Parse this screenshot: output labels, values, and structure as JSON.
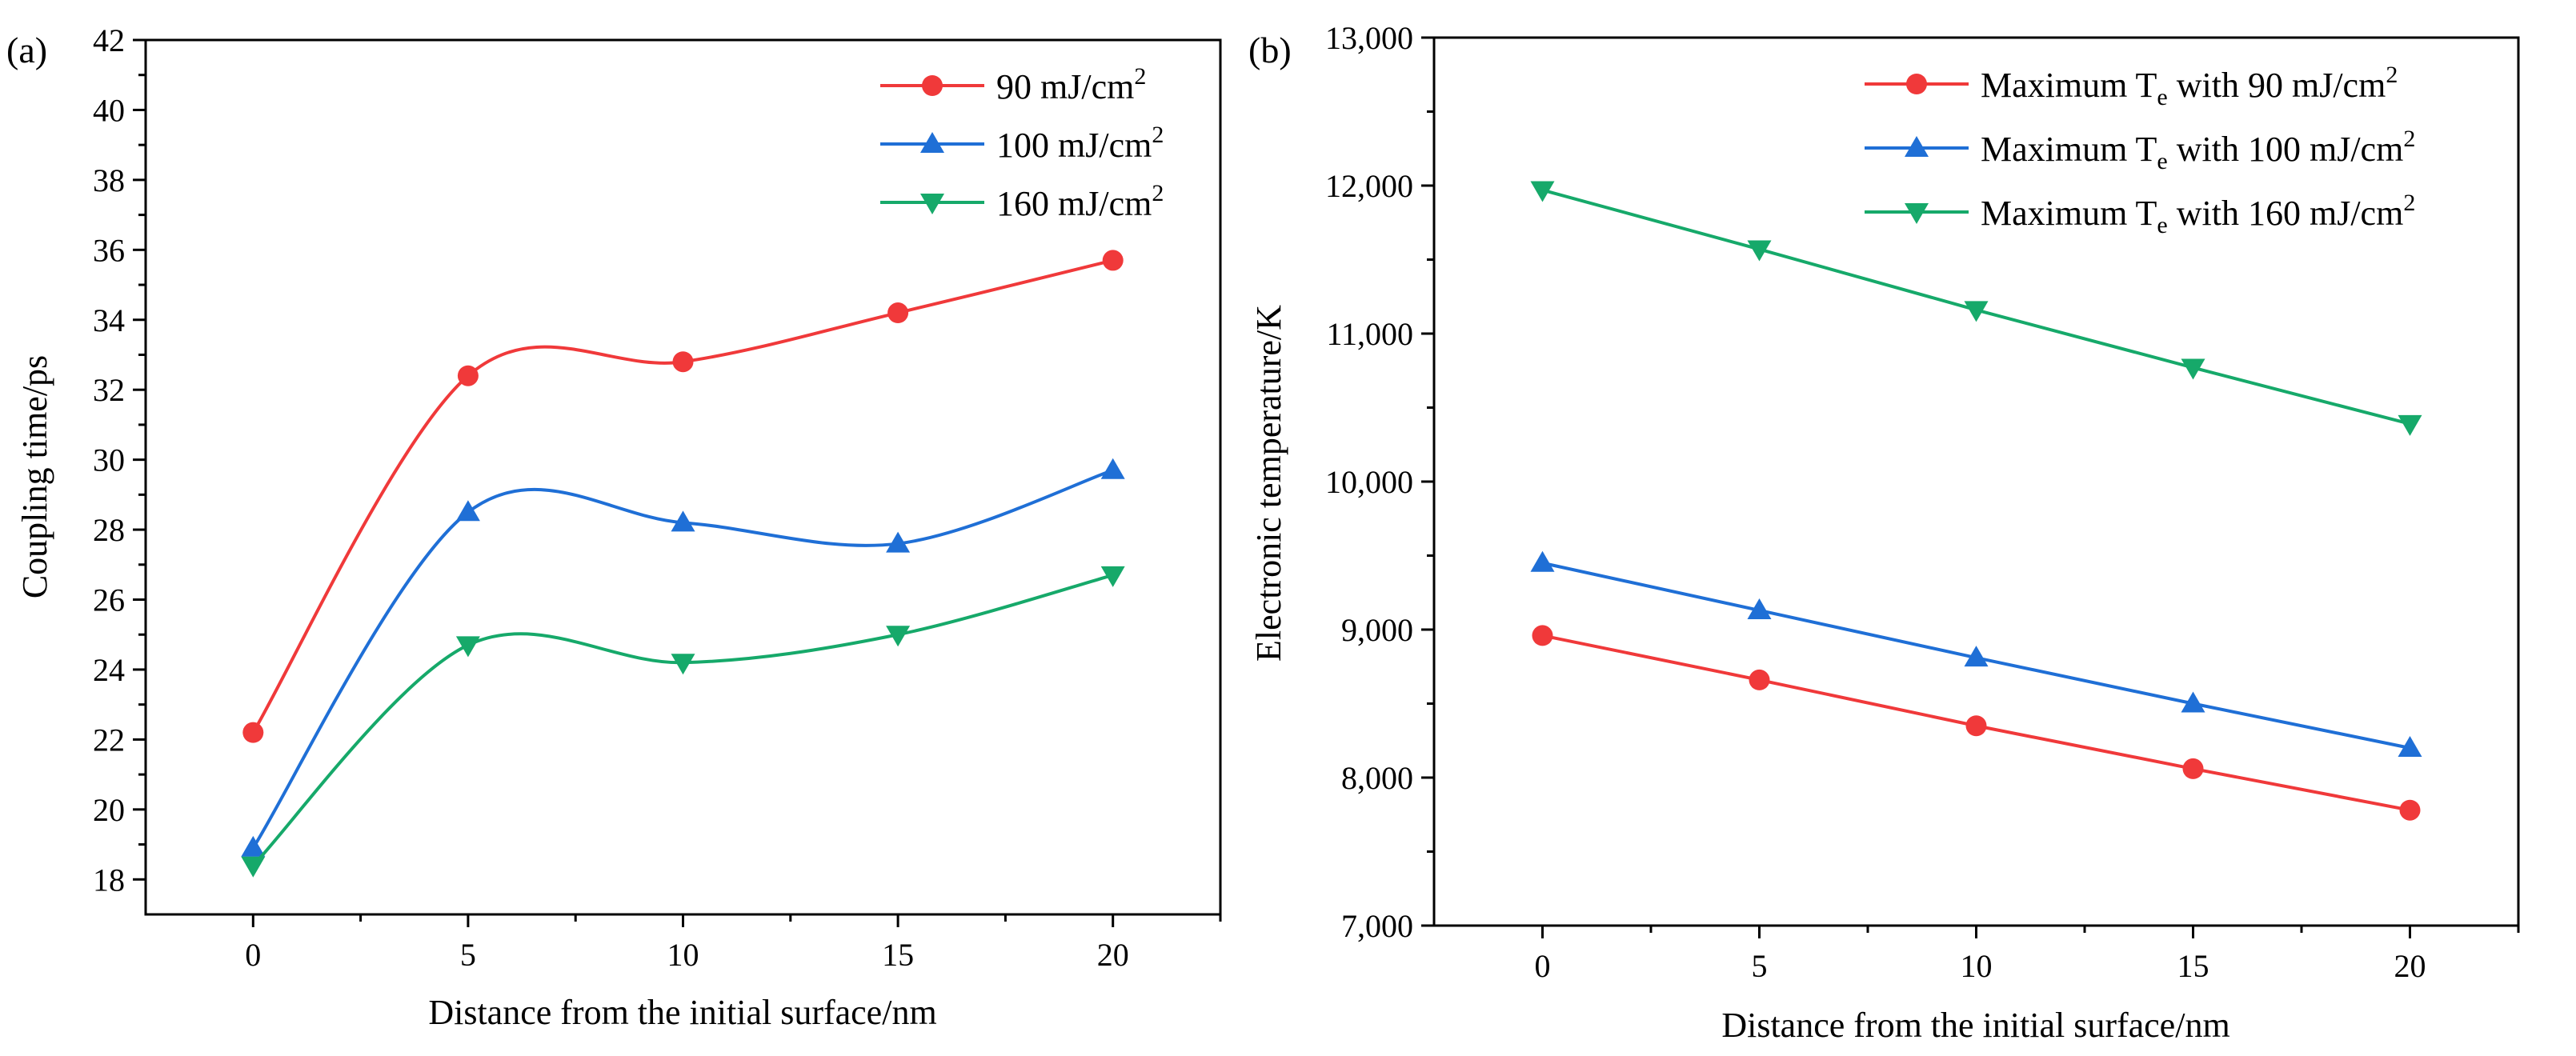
{
  "chart_data": [
    {
      "type": "line",
      "panel_label": "(a)",
      "xlabel": "Distance from the initial surface/nm",
      "ylabel": "Coupling time/ps",
      "x": [
        0,
        5,
        10,
        15,
        20
      ],
      "xlim": [
        -2.5,
        22.5
      ],
      "ylim": [
        17,
        42
      ],
      "xticks": [
        0,
        5,
        10,
        15,
        20
      ],
      "xtick_labels": [
        "0",
        "5",
        "10",
        "15",
        "20"
      ],
      "yticks": [
        18,
        20,
        22,
        24,
        26,
        28,
        30,
        32,
        34,
        36,
        38,
        40,
        42
      ],
      "ytick_labels": [
        "18",
        "20",
        "22",
        "24",
        "26",
        "28",
        "30",
        "32",
        "34",
        "36",
        "38",
        "40",
        "42"
      ],
      "curve": "smooth",
      "legend_position": "top-right",
      "series": [
        {
          "name": "90  mJ/cm",
          "sup": "2",
          "marker": "circle",
          "color": "#f0393a",
          "values": [
            22.2,
            32.4,
            32.8,
            34.2,
            35.7
          ]
        },
        {
          "name": "100 mJ/cm",
          "sup": "2",
          "marker": "triangle-up",
          "color": "#1f6fd6",
          "values": [
            18.9,
            28.5,
            28.2,
            27.6,
            29.7
          ]
        },
        {
          "name": "160 mJ/cm",
          "sup": "2",
          "marker": "triangle-down",
          "color": "#16a96a",
          "values": [
            18.4,
            24.7,
            24.2,
            25.0,
            26.7
          ]
        }
      ]
    },
    {
      "type": "line",
      "panel_label": "(b)",
      "xlabel": "Distance from the initial surface/nm",
      "ylabel": "Electronic temperature/K",
      "x": [
        0,
        5,
        10,
        15,
        20
      ],
      "xlim": [
        -2.5,
        22.5
      ],
      "ylim": [
        7000,
        13000
      ],
      "xticks": [
        0,
        5,
        10,
        15,
        20
      ],
      "xtick_labels": [
        "0",
        "5",
        "10",
        "15",
        "20"
      ],
      "yticks": [
        7000,
        8000,
        9000,
        10000,
        11000,
        12000,
        13000
      ],
      "ytick_labels": [
        "7,000",
        "8,000",
        "9,000",
        "10,000",
        "11,000",
        "12,000",
        "13,000"
      ],
      "curve": "straight",
      "legend_position": "top-right",
      "series": [
        {
          "name_pre": "Maximum T",
          "sub": "e",
          "name_post": " with 90  mJ/cm",
          "sup": "2",
          "marker": "circle",
          "color": "#f0393a",
          "values": [
            8960,
            8660,
            8350,
            8060,
            7780
          ]
        },
        {
          "name_pre": "Maximum T",
          "sub": "e",
          "name_post": " with 100 mJ/cm",
          "sup": "2",
          "marker": "triangle-up",
          "color": "#1f6fd6",
          "values": [
            9450,
            9130,
            8810,
            8500,
            8200
          ]
        },
        {
          "name_pre": "Maximum T",
          "sub": "e",
          "name_post": " with 160 mJ/cm",
          "sup": "2",
          "marker": "triangle-down",
          "color": "#16a96a",
          "values": [
            11970,
            11570,
            11160,
            10770,
            10390
          ]
        }
      ]
    }
  ]
}
